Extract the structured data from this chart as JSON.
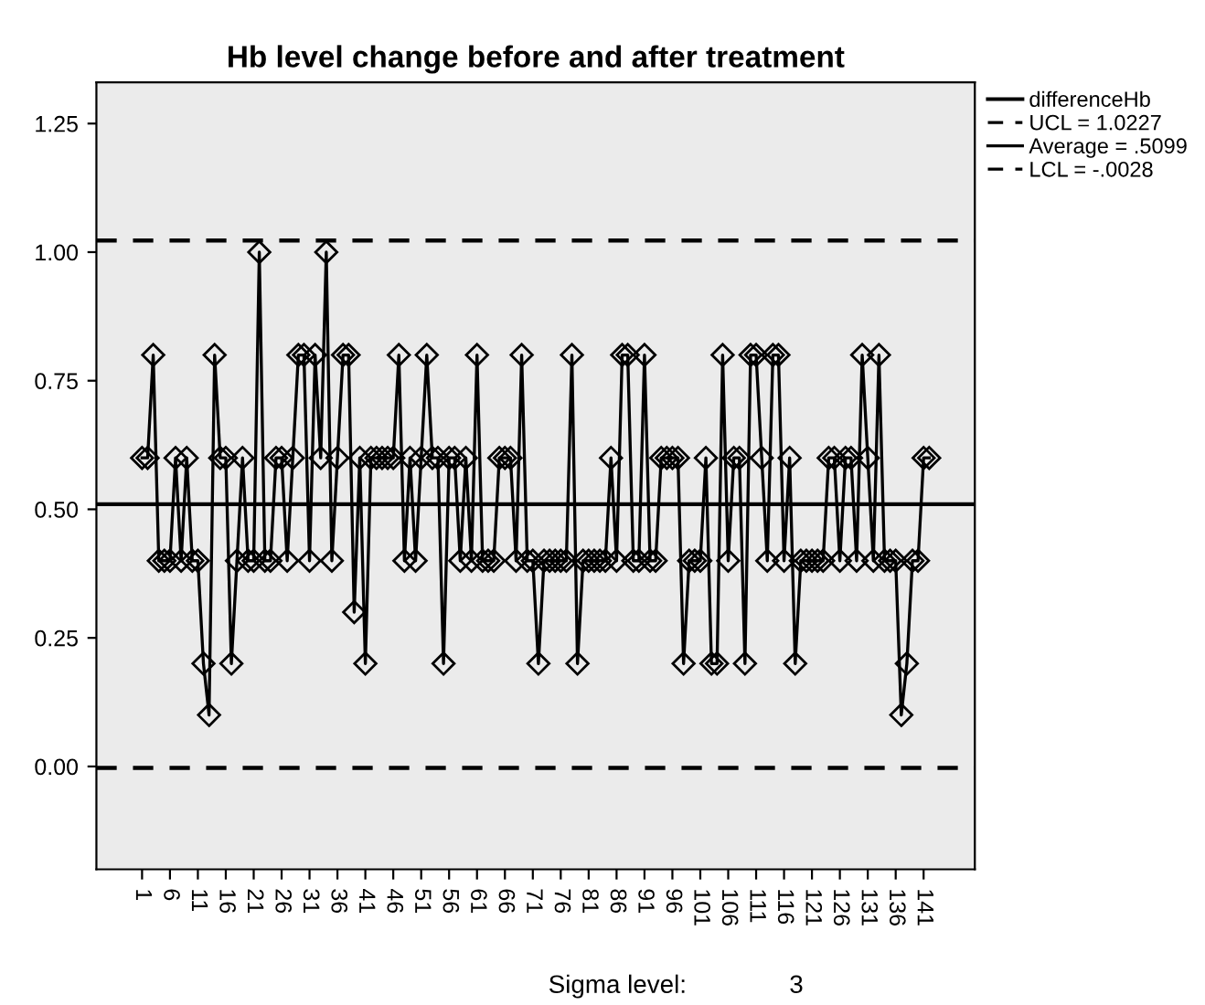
{
  "chart_data": {
    "type": "line",
    "title": "Hb level change before and after treatment",
    "categories": [
      "1",
      null,
      null,
      null,
      null,
      "6",
      null,
      null,
      null,
      null,
      "11",
      null,
      null,
      null,
      null,
      "16",
      null,
      null,
      null,
      null,
      "21",
      null,
      null,
      null,
      null,
      "26",
      null,
      null,
      null,
      null,
      "31",
      null,
      null,
      null,
      null,
      "36",
      null,
      null,
      null,
      null,
      "41",
      null,
      null,
      null,
      null,
      "46",
      null,
      null,
      null,
      null,
      "51",
      null,
      null,
      null,
      null,
      "56",
      null,
      null,
      null,
      null,
      "61",
      null,
      null,
      null,
      null,
      "66",
      null,
      null,
      null,
      null,
      "71",
      null,
      null,
      null,
      null,
      "76",
      null,
      null,
      null,
      null,
      "81",
      null,
      null,
      null,
      null,
      "86",
      null,
      null,
      null,
      null,
      "91",
      null,
      null,
      null,
      null,
      "96",
      null,
      null,
      null,
      null,
      "101",
      null,
      null,
      null,
      null,
      "106",
      null,
      null,
      null,
      null,
      "111",
      null,
      null,
      null,
      null,
      "116",
      null,
      null,
      null,
      null,
      "121",
      null,
      null,
      null,
      null,
      "126",
      null,
      null,
      null,
      null,
      "131",
      null,
      null,
      null,
      null,
      "136",
      null,
      null,
      null,
      null,
      "141",
      null
    ],
    "series": [
      {
        "name": "differenceHb",
        "color": "#000000",
        "values": [
          0.6,
          0.6,
          0.8,
          0.4,
          0.4,
          0.4,
          0.6,
          0.4,
          0.6,
          0.4,
          0.4,
          0.2,
          0.1,
          0.8,
          0.6,
          0.6,
          0.2,
          0.4,
          0.6,
          0.4,
          0.4,
          1.0,
          0.4,
          0.4,
          0.6,
          0.6,
          0.4,
          0.6,
          0.8,
          0.8,
          0.4,
          0.8,
          0.6,
          1.0,
          0.4,
          0.6,
          0.8,
          0.8,
          0.3,
          0.6,
          0.2,
          0.6,
          0.6,
          0.6,
          0.6,
          0.6,
          0.8,
          0.4,
          0.6,
          0.4,
          0.6,
          0.8,
          0.6,
          0.6,
          0.2,
          0.6,
          0.6,
          0.4,
          0.6,
          0.4,
          0.8,
          0.4,
          0.4,
          0.4,
          0.6,
          0.6,
          0.6,
          0.4,
          0.8,
          0.4,
          0.4,
          0.2,
          0.4,
          0.4,
          0.4,
          0.4,
          0.4,
          0.8,
          0.2,
          0.4,
          0.4,
          0.4,
          0.4,
          0.4,
          0.6,
          0.4,
          0.8,
          0.8,
          0.4,
          0.4,
          0.8,
          0.4,
          0.4,
          0.6,
          0.6,
          0.6,
          0.6,
          0.2,
          0.4,
          0.4,
          0.4,
          0.6,
          0.2,
          0.2,
          0.8,
          0.4,
          0.6,
          0.6,
          0.2,
          0.8,
          0.8,
          0.6,
          0.4,
          0.8,
          0.8,
          0.4,
          0.6,
          0.2,
          0.4,
          0.4,
          0.4,
          0.4,
          0.4,
          0.6,
          0.6,
          0.4,
          0.6,
          0.6,
          0.4,
          0.8,
          0.6,
          0.4,
          0.8,
          0.4,
          0.4,
          0.4,
          0.1,
          0.2,
          0.4,
          0.4,
          0.6,
          0.6
        ]
      }
    ],
    "marker": "diamond",
    "line_style": "solid",
    "ylim": [
      -0.2,
      1.33
    ],
    "yticks": [
      {
        "value": 0,
        "label": "0.00"
      },
      {
        "value": 0.25,
        "label": "0.25"
      },
      {
        "value": 0.5,
        "label": "0.50"
      },
      {
        "value": 0.75,
        "label": "0.75"
      },
      {
        "value": 1,
        "label": "1.00"
      },
      {
        "value": 1.25,
        "label": "1.25"
      }
    ],
    "ref_lines": [
      {
        "axis": "y",
        "value": 1.0227,
        "label": "UCL = 1.0227",
        "color": "#000000",
        "line_style": "dashed"
      },
      {
        "axis": "y",
        "value": 0.5099,
        "label": "Average = .5099",
        "color": "#000000",
        "line_style": "solid"
      },
      {
        "axis": "y",
        "value": -0.0028,
        "label": "LCL = -.0028",
        "color": "#000000",
        "line_style": "dashed"
      }
    ],
    "legend": "top right",
    "grid": false,
    "annotations": [
      "Sigma level:",
      "3"
    ]
  }
}
